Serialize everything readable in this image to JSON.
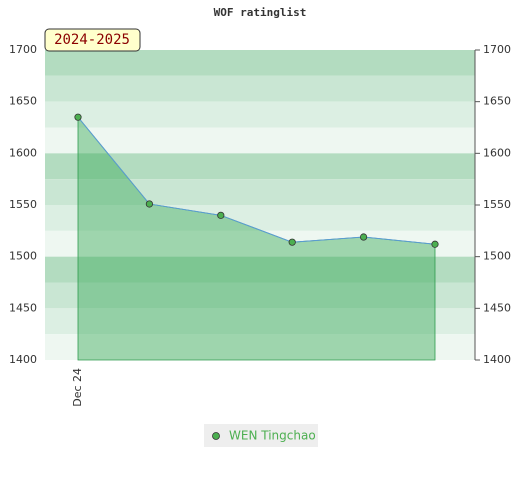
{
  "chart_data": {
    "type": "area",
    "title": "WOF ratinglist",
    "annotation": "2024-2025",
    "categories": [
      "Dec 24",
      null,
      null,
      null,
      null,
      null
    ],
    "series": [
      {
        "name": "WEN Tingchao",
        "color": "#4caf50",
        "values": [
          1635,
          1551,
          1540,
          1514,
          1519,
          1512
        ]
      }
    ],
    "ylim": [
      1400,
      1700
    ],
    "yticks": [
      1400,
      1450,
      1500,
      1550,
      1600,
      1650,
      1700
    ],
    "grid": true
  }
}
